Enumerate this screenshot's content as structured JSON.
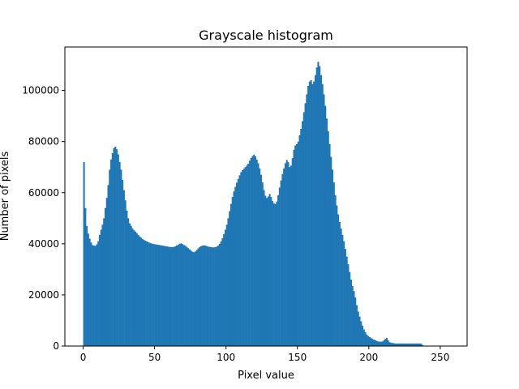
{
  "chart_data": {
    "type": "bar",
    "title": "Grayscale histogram",
    "xlabel": "Pixel value",
    "ylabel": "Number of pixels",
    "xlim": [
      -12.8,
      268.8
    ],
    "ylim": [
      0,
      117000
    ],
    "xticks": [
      0,
      50,
      100,
      150,
      200,
      250
    ],
    "yticks": [
      0,
      20000,
      40000,
      60000,
      80000,
      100000
    ],
    "xtick_labels": [
      "0",
      "50",
      "100",
      "150",
      "200",
      "250"
    ],
    "ytick_labels": [
      "0",
      "20000",
      "40000",
      "60000",
      "80000",
      "100000"
    ],
    "grid": false,
    "legend": "none",
    "bar_color": "#1f77b4",
    "bin_start": 0,
    "bin_width": 1,
    "values": [
      72000,
      54000,
      47000,
      44000,
      42000,
      40500,
      39500,
      39300,
      39200,
      39800,
      41000,
      43500,
      45500,
      47500,
      50000,
      54000,
      58000,
      63000,
      69000,
      73000,
      75500,
      77500,
      78000,
      77000,
      75000,
      72000,
      69000,
      65000,
      61000,
      57000,
      53000,
      50000,
      48000,
      47000,
      46000,
      45300,
      44800,
      44200,
      43500,
      42900,
      42400,
      41900,
      41500,
      41200,
      40900,
      40600,
      40400,
      40200,
      40000,
      39900,
      39800,
      39700,
      39600,
      39500,
      39400,
      39300,
      39200,
      39100,
      39000,
      38900,
      38800,
      38700,
      38700,
      38800,
      39000,
      39300,
      39600,
      40000,
      40200,
      39900,
      39500,
      39200,
      38800,
      38300,
      37800,
      37300,
      36900,
      36700,
      37000,
      37600,
      38200,
      38700,
      39100,
      39300,
      39400,
      39300,
      39100,
      38900,
      38800,
      38700,
      38600,
      38600,
      38700,
      38900,
      39300,
      40000,
      41000,
      42200,
      43800,
      45500,
      47500,
      50000,
      52800,
      55600,
      58300,
      60500,
      62300,
      63900,
      65400,
      66800,
      68000,
      68800,
      69400,
      70000,
      70600,
      71300,
      72500,
      73600,
      74300,
      74900,
      74200,
      73000,
      71500,
      69500,
      67000,
      64000,
      61000,
      58800,
      57900,
      58500,
      59500,
      58300,
      56800,
      55800,
      55500,
      56500,
      59000,
      62000,
      64800,
      67300,
      69500,
      71500,
      72800,
      72000,
      70000,
      70600,
      73500,
      76800,
      78500,
      79000,
      80000,
      82500,
      85000,
      88000,
      91500,
      95000,
      98500,
      101800,
      103500,
      104000,
      102500,
      103500,
      106000,
      109000,
      111200,
      109500,
      106000,
      102500,
      98500,
      94000,
      89000,
      84000,
      79000,
      74000,
      69000,
      64000,
      59000,
      55000,
      51500,
      48500,
      46000,
      43500,
      41000,
      38000,
      35000,
      32000,
      29000,
      26000,
      23500,
      21500,
      19000,
      16000,
      13500,
      11500,
      9700,
      8000,
      6500,
      5400,
      4500,
      3900,
      3500,
      3100,
      2800,
      2500,
      2200,
      2000,
      1800,
      1700,
      1700,
      1800,
      2200,
      2800,
      3200,
      2200,
      1500,
      1300,
      1200,
      1100,
      1000,
      1000,
      1000,
      1000,
      1000,
      1000,
      1000,
      1000,
      1000,
      1000,
      1000,
      1000,
      1000,
      1000,
      1000,
      1000,
      1000,
      1000,
      1000,
      400
    ]
  }
}
